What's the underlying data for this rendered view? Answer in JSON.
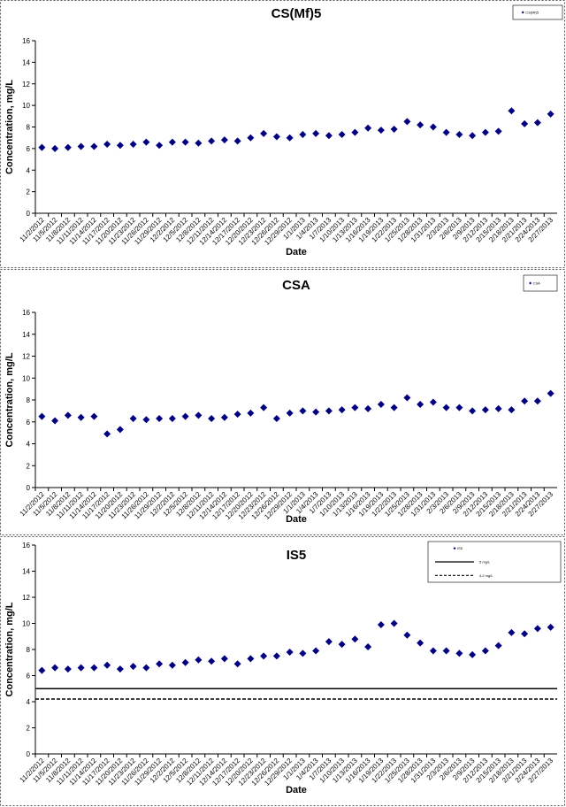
{
  "chart_data": [
    {
      "type": "scatter",
      "title": "CS(Mf)5",
      "x_label": "Date",
      "y_label": "Concentration, mg/L",
      "categories": [
        "11/2/2012",
        "11/5/2012",
        "11/8/2012",
        "11/11/2012",
        "11/14/2012",
        "11/17/2012",
        "11/20/2012",
        "11/23/2012",
        "11/26/2012",
        "11/29/2012",
        "12/2/2012",
        "12/5/2012",
        "12/8/2012",
        "12/11/2012",
        "12/14/2012",
        "12/17/2012",
        "12/20/2012",
        "12/23/2012",
        "12/26/2012",
        "12/29/2012",
        "1/1/2013",
        "1/4/2013",
        "1/7/2013",
        "1/10/2013",
        "1/13/2013",
        "1/16/2013",
        "1/19/2013",
        "1/22/2013",
        "1/25/2013",
        "1/28/2013",
        "1/31/2013",
        "2/3/2013",
        "2/6/2013",
        "2/9/2013",
        "2/12/2013",
        "2/15/2013",
        "2/18/2013",
        "2/21/2013",
        "2/24/2013",
        "2/27/2013"
      ],
      "series": [
        {
          "name": "CS(Mf)5",
          "color": "#000080",
          "marker": "diamond",
          "values": [
            6.1,
            6.0,
            6.1,
            6.2,
            6.2,
            6.4,
            6.3,
            6.4,
            6.6,
            6.3,
            6.6,
            6.6,
            6.5,
            6.7,
            6.8,
            6.7,
            7.0,
            7.4,
            7.1,
            7.0,
            7.3,
            7.4,
            7.2,
            7.3,
            7.5,
            7.9,
            7.7,
            7.8,
            8.5,
            8.2,
            8.0,
            7.5,
            7.3,
            7.2,
            7.5,
            7.6,
            9.5,
            8.3,
            8.4,
            9.2
          ]
        }
      ],
      "ylim": [
        0,
        16
      ],
      "yticks": [
        0,
        2,
        4,
        6,
        8,
        10,
        12,
        14,
        16
      ],
      "legend": "upper right"
    },
    {
      "type": "scatter",
      "title": "CSA",
      "x_label": "Date",
      "y_label": "Concentration, mg/L",
      "categories": [
        "11/2/2012",
        "11/5/2012",
        "11/8/2012",
        "11/11/2012",
        "11/14/2012",
        "11/17/2012",
        "11/20/2012",
        "11/23/2012",
        "11/26/2012",
        "11/29/2012",
        "12/2/2012",
        "12/5/2012",
        "12/8/2012",
        "12/11/2012",
        "12/14/2012",
        "12/17/2012",
        "12/20/2012",
        "12/23/2012",
        "12/26/2012",
        "12/29/2012",
        "1/1/2013",
        "1/4/2013",
        "1/7/2013",
        "1/10/2013",
        "1/13/2013",
        "1/16/2013",
        "1/19/2013",
        "1/22/2013",
        "1/25/2013",
        "1/28/2013",
        "1/31/2013",
        "2/3/2013",
        "2/6/2013",
        "2/9/2013",
        "2/12/2013",
        "2/15/2013",
        "2/18/2013",
        "2/21/2013",
        "2/24/2013",
        "2/27/2013"
      ],
      "series": [
        {
          "name": "CSA",
          "color": "#000080",
          "marker": "diamond",
          "values": [
            6.5,
            6.1,
            6.6,
            6.4,
            6.5,
            4.9,
            5.3,
            6.3,
            6.2,
            6.3,
            6.3,
            6.5,
            6.6,
            6.3,
            6.4,
            6.7,
            6.8,
            7.3,
            6.3,
            6.8,
            7.0,
            6.9,
            7.0,
            7.1,
            7.3,
            7.2,
            7.6,
            7.3,
            8.2,
            7.6,
            7.8,
            7.3,
            7.3,
            7.0,
            7.1,
            7.2,
            7.1,
            7.9,
            7.9,
            8.6
          ]
        }
      ],
      "ylim": [
        0,
        16
      ],
      "yticks": [
        0,
        2,
        4,
        6,
        8,
        10,
        12,
        14,
        16
      ],
      "legend": "upper right"
    },
    {
      "type": "scatter",
      "title": "IS5",
      "x_label": "Date",
      "y_label": "Concentration, mg/L",
      "categories": [
        "11/2/2012",
        "11/5/2012",
        "11/8/2012",
        "11/11/2012",
        "11/14/2012",
        "11/17/2012",
        "11/20/2012",
        "11/23/2012",
        "11/26/2012",
        "11/29/2012",
        "12/2/2012",
        "12/5/2012",
        "12/8/2012",
        "12/11/2012",
        "12/14/2012",
        "12/17/2012",
        "12/20/2012",
        "12/23/2012",
        "12/26/2012",
        "12/29/2012",
        "1/1/2013",
        "1/4/2013",
        "1/7/2013",
        "1/10/2013",
        "1/13/2013",
        "1/16/2013",
        "1/19/2013",
        "1/22/2013",
        "1/25/2013",
        "1/28/2013",
        "1/31/2013",
        "2/3/2013",
        "2/6/2013",
        "2/9/2013",
        "2/12/2013",
        "2/15/2013",
        "2/18/2013",
        "2/21/2013",
        "2/24/2013",
        "2/27/2013"
      ],
      "series": [
        {
          "name": "IS5",
          "color": "#000080",
          "marker": "diamond",
          "values": [
            6.4,
            6.6,
            6.5,
            6.6,
            6.6,
            6.8,
            6.5,
            6.7,
            6.6,
            6.9,
            6.8,
            7.0,
            7.2,
            7.1,
            7.3,
            6.9,
            7.3,
            7.5,
            7.5,
            7.8,
            7.7,
            7.9,
            8.6,
            8.4,
            8.8,
            8.2,
            9.9,
            10.0,
            9.1,
            8.5,
            7.9,
            7.9,
            7.7,
            7.6,
            7.9,
            8.3,
            9.3,
            9.2,
            9.6,
            9.7
          ]
        }
      ],
      "reference_lines": [
        {
          "name": "5 mg/L",
          "value": 5,
          "color": "#000000",
          "dashed": false
        },
        {
          "name": "4.2 mg/L",
          "value": 4.2,
          "color": "#000000",
          "dashed": true
        }
      ],
      "ylim": [
        0,
        16
      ],
      "yticks": [
        0,
        2,
        4,
        6,
        8,
        10,
        12,
        14,
        16
      ],
      "legend": "upper right"
    }
  ]
}
